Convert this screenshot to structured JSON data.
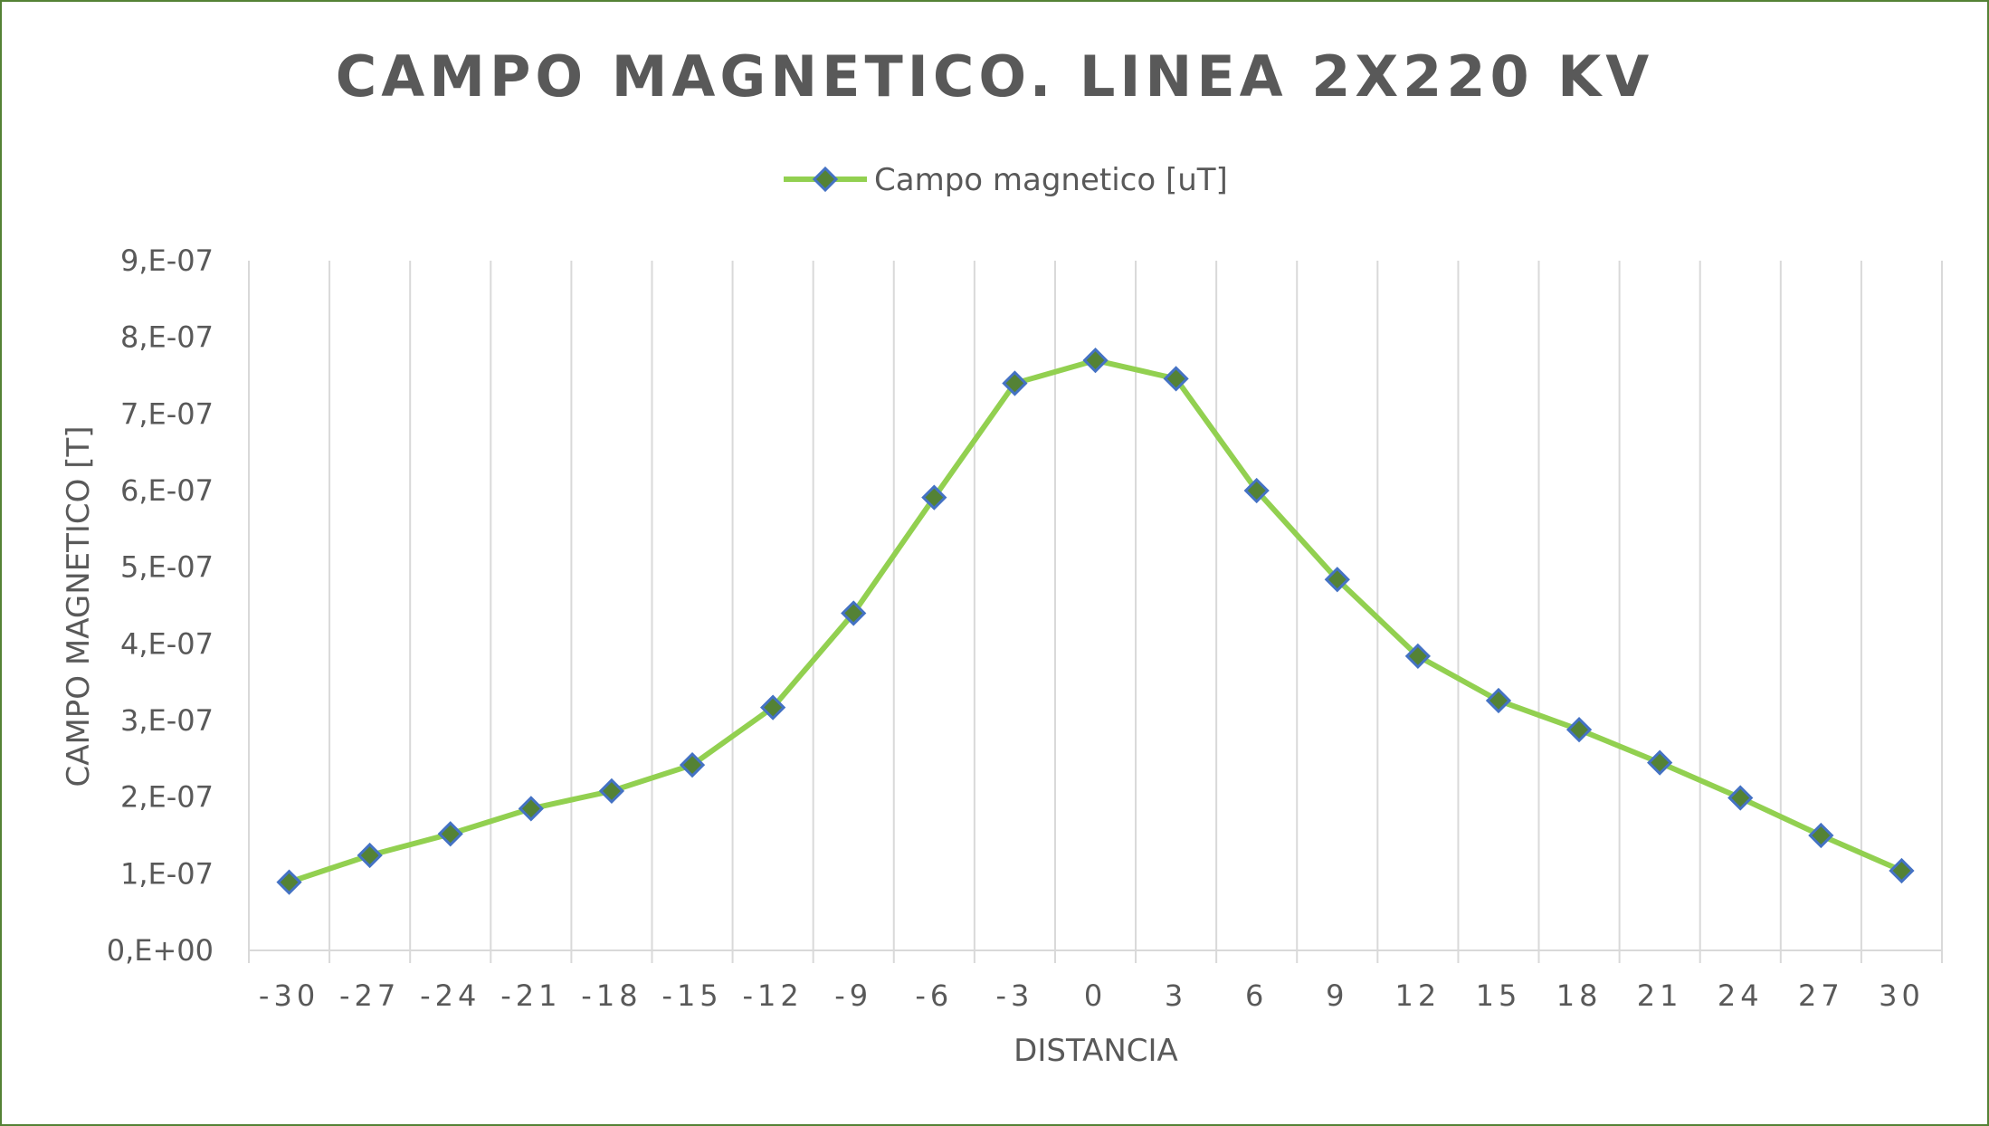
{
  "chart_data": {
    "type": "line",
    "title": "CAMPO MAGNETICO. LINEA 2X220 KV",
    "xlabel": "DISTANCIA",
    "ylabel": "CAMPO MAGNETICO [T]",
    "legend_position": "top",
    "grid": "vertical gridlines",
    "ylim": [
      0,
      9e-07
    ],
    "y_ticks": [
      "0,E+00",
      "1,E-07",
      "2,E-07",
      "3,E-07",
      "4,E-07",
      "5,E-07",
      "6,E-07",
      "7,E-07",
      "8,E-07",
      "9,E-07"
    ],
    "categories": [
      "-30",
      "-27",
      "-24",
      "-21",
      "-18",
      "-15",
      "-12",
      "-9",
      "-6",
      "-3",
      "0",
      "3",
      "6",
      "9",
      "12",
      "15",
      "18",
      "21",
      "24",
      "27",
      "30"
    ],
    "series": [
      {
        "name": "Campo magnetico [uT]",
        "line_color": "#92D050",
        "marker": "diamond",
        "marker_fill": "#548235",
        "marker_edge": "#4472C4",
        "values": [
          8.9e-08,
          1.24e-07,
          1.52e-07,
          1.85e-07,
          2.08e-07,
          2.42e-07,
          3.17e-07,
          4.4e-07,
          5.91e-07,
          7.4e-07,
          7.7e-07,
          7.46e-07,
          6e-07,
          4.84e-07,
          3.84e-07,
          3.26e-07,
          2.88e-07,
          2.45e-07,
          1.99e-07,
          1.5e-07,
          1.04e-07
        ]
      }
    ]
  },
  "colors": {
    "border": "#548235",
    "text": "#595959",
    "grid": "#D9D9D9",
    "axis": "#D9D9D9"
  }
}
